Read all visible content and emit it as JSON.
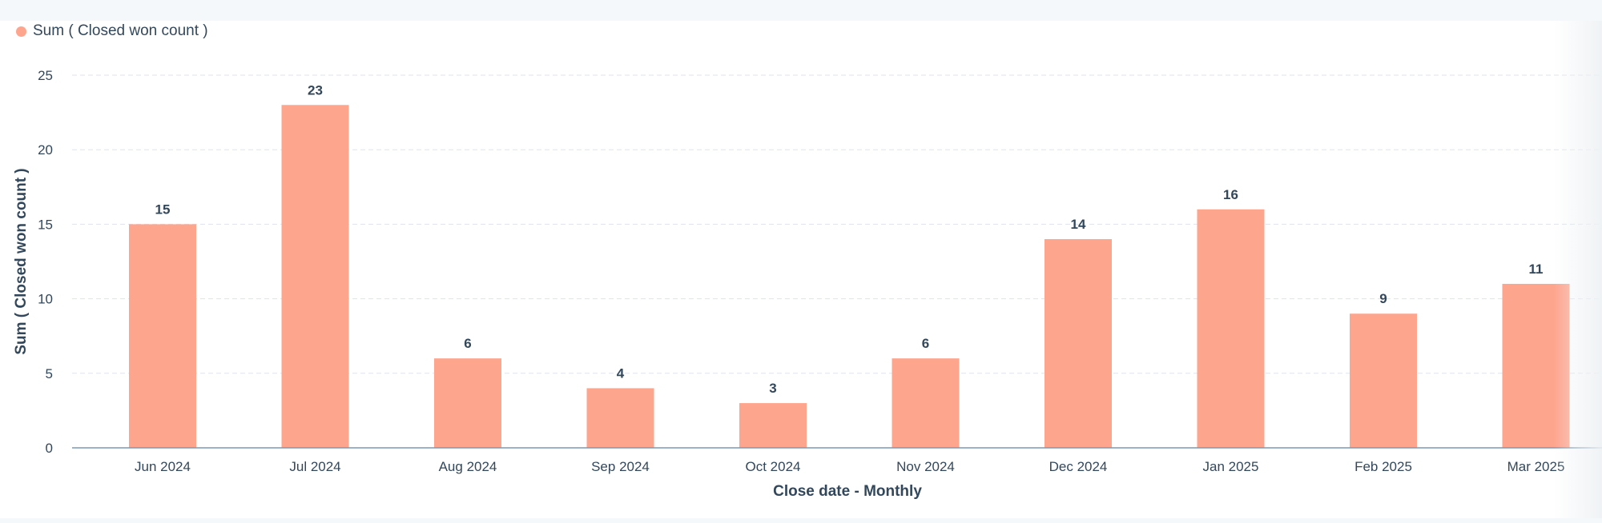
{
  "legend": {
    "label": "Sum ( Closed won count )",
    "color": "#fea58e"
  },
  "chart_data": {
    "type": "bar",
    "xlabel": "Close date - Monthly",
    "ylabel": "Sum ( Closed won count )",
    "ylim": [
      0,
      25
    ],
    "yticks": [
      0,
      5,
      10,
      15,
      20,
      25
    ],
    "grid": true,
    "legend_position": "top-left",
    "categories": [
      "Jun 2024",
      "Jul 2024",
      "Aug 2024",
      "Sep 2024",
      "Oct 2024",
      "Nov 2024",
      "Dec 2024",
      "Jan 2025",
      "Feb 2025",
      "Mar 2025"
    ],
    "series": [
      {
        "name": "Sum ( Closed won count )",
        "color": "#fea58e",
        "values": [
          15,
          23,
          6,
          4,
          3,
          6,
          14,
          16,
          9,
          11
        ]
      }
    ]
  }
}
